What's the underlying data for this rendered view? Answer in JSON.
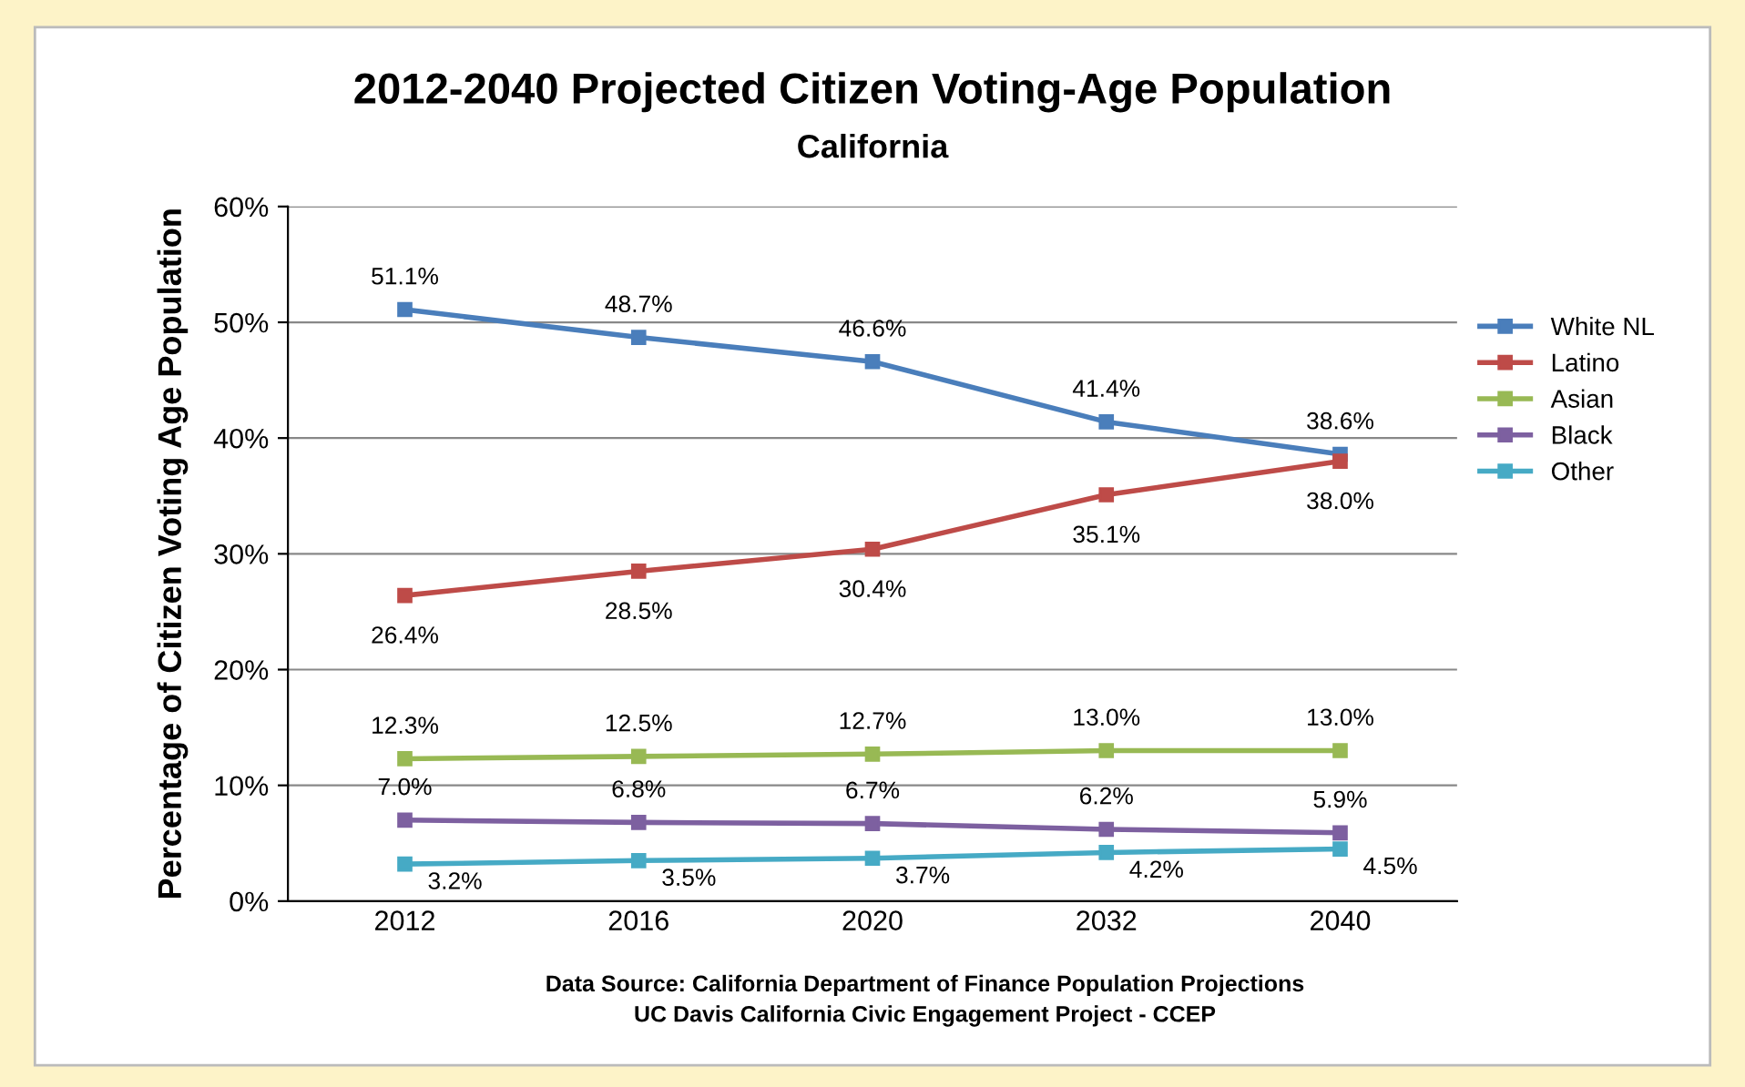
{
  "chart_data": {
    "type": "line",
    "title": "2012-2040 Projected Citizen Voting-Age Population",
    "subtitle": "California",
    "ylabel": "Percentage of Citizen Voting Age Population",
    "categories": [
      "2012",
      "2016",
      "2020",
      "2032",
      "2040"
    ],
    "series": [
      {
        "name": "White NL",
        "color": "#4a7ebb",
        "values": [
          51.1,
          48.7,
          46.6,
          41.4,
          38.6
        ],
        "value_labels": [
          "51.1%",
          "48.7%",
          "46.6%",
          "41.4%",
          "38.6%"
        ]
      },
      {
        "name": "Latino",
        "color": "#be4b48",
        "values": [
          26.4,
          28.5,
          30.4,
          35.1,
          38.0
        ],
        "value_labels": [
          "26.4%",
          "28.5%",
          "30.4%",
          "35.1%",
          "38.0%"
        ]
      },
      {
        "name": "Asian",
        "color": "#98b954",
        "values": [
          12.3,
          12.5,
          12.7,
          13.0,
          13.0
        ],
        "value_labels": [
          "12.3%",
          "12.5%",
          "12.7%",
          "13.0%",
          "13.0%"
        ]
      },
      {
        "name": "Black",
        "color": "#7d60a0",
        "values": [
          7.0,
          6.8,
          6.7,
          6.2,
          5.9
        ],
        "value_labels": [
          "7.0%",
          "6.8%",
          "6.7%",
          "6.2%",
          "5.9%"
        ]
      },
      {
        "name": "Other",
        "color": "#46aac5",
        "values": [
          3.2,
          3.5,
          3.7,
          4.2,
          4.5
        ],
        "value_labels": [
          "3.2%",
          "3.5%",
          "3.7%",
          "4.2%",
          "4.5%"
        ]
      }
    ],
    "ylim": [
      0,
      60
    ],
    "yticks": [
      {
        "value": 0,
        "label": "0%"
      },
      {
        "value": 10,
        "label": "10%"
      },
      {
        "value": 20,
        "label": "20%"
      },
      {
        "value": 30,
        "label": "30%"
      },
      {
        "value": 40,
        "label": "40%"
      },
      {
        "value": 50,
        "label": "50%"
      },
      {
        "value": 60,
        "label": "60%"
      }
    ],
    "grid": "y",
    "legend": "right",
    "marker": "square",
    "line_style": "solid",
    "annotations": [
      "Data Source: California Department of Finance Population Projections",
      "UC Davis California Civic Engagement Project - CCEP"
    ]
  }
}
